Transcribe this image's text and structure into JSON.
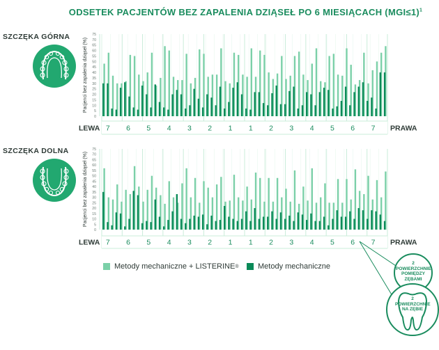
{
  "title": "ODSETEK PACJENTÓW BEZ ZAPALENIA DZIĄSEŁ PO 6 MIESIĄCACH (MGI≤1)",
  "title_superscript": "1",
  "colors": {
    "green_light": "#7bd0a8",
    "green_dark": "#0a8a58",
    "accent": "#1a8c5e"
  },
  "icons": [
    "upper-jaw-icon",
    "lower-jaw-icon",
    "tooth-icon"
  ],
  "legend": {
    "light_label": "Metody mechaniczne + LISTERINE",
    "light_sup": "®",
    "dark_label": "Metody mechaniczne"
  },
  "callouts": {
    "interproximal": [
      "2",
      "POWIERZCHNIE",
      "POMIĘDZY",
      "ZĘBAMI"
    ],
    "tooth_surfaces": [
      "2",
      "POWIERZCHNIE",
      "NA ZĘBIE"
    ]
  },
  "chart_data": [
    {
      "type": "bar",
      "title": "SZCZĘKA GÓRNA",
      "ylabel": "Pacjenci bez zapalenia dziąseł (%)",
      "ylim": [
        0,
        75
      ],
      "yticks": [
        0,
        5,
        10,
        15,
        20,
        25,
        30,
        35,
        40,
        45,
        50,
        55,
        60,
        65,
        70,
        75
      ],
      "left_label": "LEWA",
      "right_label": "PRAWA",
      "teeth": [
        "7",
        "6",
        "5",
        "4",
        "3",
        "2",
        "1",
        "1",
        "2",
        "3",
        "4",
        "5",
        "6",
        "7"
      ],
      "series": [
        {
          "name": "Metody mechaniczne + LISTERINE",
          "values": [
            48,
            58,
            37,
            30,
            30,
            32,
            56,
            55,
            38,
            32,
            40,
            58,
            28,
            35,
            64,
            60,
            36,
            33,
            33,
            57,
            30,
            35,
            61,
            57,
            36,
            38,
            38,
            62,
            32,
            30,
            58,
            56,
            38,
            36,
            62,
            36,
            60,
            56,
            40,
            34,
            39,
            55,
            34,
            37,
            55,
            59,
            38,
            33,
            48,
            62,
            32,
            31,
            55,
            57,
            38,
            37,
            62,
            47,
            29,
            33,
            58,
            30,
            42,
            50,
            58,
            64
          ]
        },
        {
          "name": "Metody mechaniczne",
          "values": [
            30,
            30,
            7,
            6,
            26,
            31,
            18,
            8,
            6,
            28,
            20,
            8,
            29,
            13,
            8,
            6,
            20,
            24,
            20,
            7,
            10,
            25,
            16,
            8,
            20,
            17,
            10,
            27,
            7,
            13,
            26,
            31,
            20,
            7,
            6,
            22,
            22,
            12,
            10,
            21,
            28,
            11,
            11,
            23,
            27,
            7,
            10,
            22,
            20,
            10,
            22,
            26,
            24,
            7,
            9,
            14,
            27,
            10,
            22,
            27,
            31,
            14,
            17,
            7,
            40,
            40
          ]
        }
      ]
    },
    {
      "type": "bar",
      "title": "SZCZĘKA DOLNA",
      "ylabel": "Pacjenci bez zapalenia dziąseł (%)",
      "ylim": [
        0,
        75
      ],
      "yticks": [
        0,
        5,
        10,
        15,
        20,
        25,
        30,
        35,
        40,
        45,
        50,
        55,
        60,
        65,
        70,
        75
      ],
      "left_label": "LEWA",
      "right_label": "PRAWA",
      "teeth": [
        "7",
        "6",
        "5",
        "4",
        "3",
        "2",
        "1",
        "1",
        "2",
        "3",
        "4",
        "5",
        "6",
        "7"
      ],
      "series": [
        {
          "name": "Metody mechaniczne + LISTERINE",
          "values": [
            57,
            30,
            28,
            42,
            26,
            37,
            33,
            59,
            40,
            26,
            37,
            50,
            39,
            32,
            24,
            45,
            30,
            25,
            43,
            57,
            30,
            48,
            25,
            45,
            39,
            30,
            42,
            49,
            26,
            27,
            51,
            30,
            27,
            40,
            28,
            53,
            48,
            26,
            48,
            26,
            48,
            30,
            38,
            26,
            55,
            24,
            40,
            27,
            57,
            25,
            30,
            43,
            25,
            25,
            47,
            25,
            47,
            28,
            56,
            36,
            33,
            50,
            28,
            46,
            30,
            54
          ]
        },
        {
          "name": "Metody mechaniczne",
          "values": [
            35,
            7,
            4,
            16,
            15,
            3,
            10,
            36,
            32,
            6,
            8,
            7,
            28,
            12,
            3,
            9,
            17,
            33,
            10,
            6,
            10,
            13,
            12,
            14,
            5,
            13,
            8,
            9,
            22,
            12,
            10,
            8,
            10,
            17,
            8,
            20,
            10,
            12,
            12,
            17,
            10,
            16,
            10,
            13,
            8,
            16,
            14,
            9,
            15,
            8,
            8,
            12,
            4,
            10,
            18,
            12,
            12,
            17,
            10,
            20,
            18,
            10,
            18,
            17,
            14,
            8
          ]
        }
      ]
    }
  ]
}
